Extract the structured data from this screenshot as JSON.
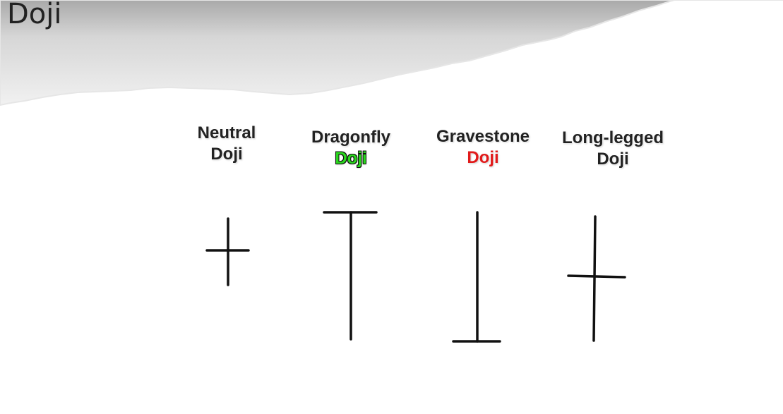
{
  "slide": {
    "title": "Doji"
  },
  "doji_types": [
    {
      "name_line1": "Neutral",
      "name_line2": "Doji",
      "line2_color": "#222222"
    },
    {
      "name_line1": "Dragonfly",
      "name_line2": "Doji",
      "line2_color": "#2ad71e"
    },
    {
      "name_line1": "Gravestone",
      "name_line2": "Doji",
      "line2_color": "#e11a1a"
    },
    {
      "name_line1": "Long-legged",
      "name_line2": "Doji",
      "line2_color": "#222222"
    }
  ],
  "colors": {
    "candle_stroke": "#111111",
    "label_text": "#222222",
    "header_gradient_top": "#a9a9a9",
    "header_gradient_bottom": "#f1f1f1"
  }
}
